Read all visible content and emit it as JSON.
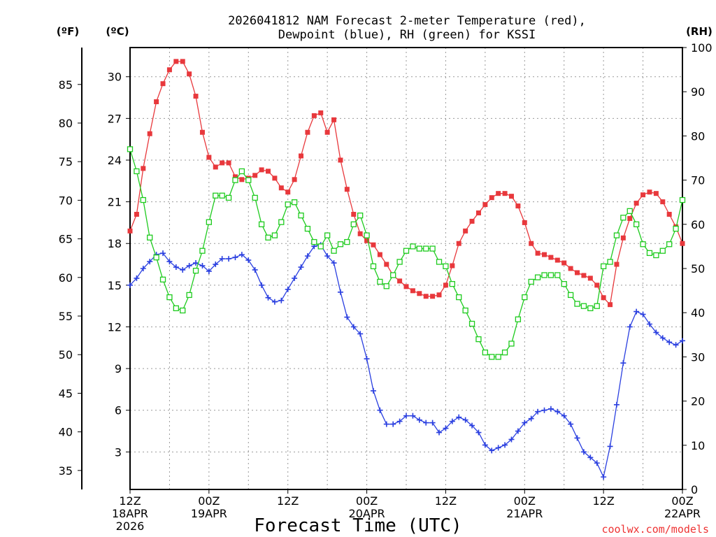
{
  "chart_data": {
    "type": "line",
    "title_line1": "2026041812 NAM Forecast 2-meter Temperature (red),",
    "title_line2": "Dewpoint (blue), RH (green) for KSSI",
    "xlabel": "Forecast Time (UTC)",
    "credit": "coolwx.com/models",
    "units": {
      "left_f": "(ºF)",
      "left_c": "(ºC)",
      "right_rh": "(RH)"
    },
    "xlim": [
      0,
      84
    ],
    "y_celsius_lim": [
      0.3,
      32.1
    ],
    "y_rh_lim": [
      0,
      100
    ],
    "celsius_ticks": [
      3,
      6,
      9,
      12,
      15,
      18,
      21,
      24,
      27,
      30
    ],
    "fahrenheit_ticks": [
      35,
      40,
      45,
      50,
      55,
      60,
      65,
      70,
      75,
      80,
      85
    ],
    "rh_ticks": [
      0,
      10,
      20,
      30,
      40,
      50,
      60,
      70,
      80,
      90,
      100
    ],
    "x_ticks": [
      {
        "h": 0,
        "l1": "12Z",
        "l2": "18APR",
        "l3": "2026"
      },
      {
        "h": 12,
        "l1": "00Z",
        "l2": "19APR",
        "l3": ""
      },
      {
        "h": 24,
        "l1": "12Z",
        "l2": "",
        "l3": ""
      },
      {
        "h": 36,
        "l1": "00Z",
        "l2": "20APR",
        "l3": ""
      },
      {
        "h": 48,
        "l1": "12Z",
        "l2": "",
        "l3": ""
      },
      {
        "h": 60,
        "l1": "00Z",
        "l2": "21APR",
        "l3": ""
      },
      {
        "h": 72,
        "l1": "12Z",
        "l2": "",
        "l3": ""
      },
      {
        "h": 84,
        "l1": "00Z",
        "l2": "22APR",
        "l3": ""
      }
    ],
    "series": [
      {
        "color": "#e8383c",
        "marker": "filled-square",
        "axis": "celsius",
        "points": [
          [
            0,
            18.9
          ],
          [
            1,
            20.1
          ],
          [
            2,
            23.4
          ],
          [
            3,
            25.9
          ],
          [
            4,
            28.2
          ],
          [
            5,
            29.5
          ],
          [
            6,
            30.5
          ],
          [
            7,
            31.1
          ],
          [
            8,
            31.1
          ],
          [
            9,
            30.2
          ],
          [
            10,
            28.6
          ],
          [
            11,
            26.0
          ],
          [
            12,
            24.2
          ],
          [
            13,
            23.5
          ],
          [
            14,
            23.8
          ],
          [
            15,
            23.8
          ],
          [
            16,
            22.8
          ],
          [
            17,
            22.6
          ],
          [
            18,
            22.7
          ],
          [
            19,
            22.9
          ],
          [
            20,
            23.3
          ],
          [
            21,
            23.2
          ],
          [
            22,
            22.7
          ],
          [
            23,
            22.0
          ],
          [
            24,
            21.7
          ],
          [
            25,
            22.6
          ],
          [
            26,
            24.3
          ],
          [
            27,
            26.0
          ],
          [
            28,
            27.2
          ],
          [
            29,
            27.4
          ],
          [
            30,
            26.0
          ],
          [
            31,
            26.9
          ],
          [
            32,
            24.0
          ],
          [
            33,
            21.9
          ],
          [
            34,
            20.1
          ],
          [
            35,
            18.7
          ],
          [
            36,
            18.2
          ],
          [
            37,
            17.9
          ],
          [
            38,
            17.2
          ],
          [
            39,
            16.5
          ],
          [
            40,
            15.7
          ],
          [
            41,
            15.3
          ],
          [
            42,
            14.9
          ],
          [
            43,
            14.6
          ],
          [
            44,
            14.4
          ],
          [
            45,
            14.2
          ],
          [
            46,
            14.2
          ],
          [
            47,
            14.3
          ],
          [
            48,
            15.0
          ],
          [
            49,
            16.4
          ],
          [
            50,
            18.0
          ],
          [
            51,
            18.9
          ],
          [
            52,
            19.6
          ],
          [
            53,
            20.2
          ],
          [
            54,
            20.8
          ],
          [
            55,
            21.3
          ],
          [
            56,
            21.6
          ],
          [
            57,
            21.6
          ],
          [
            58,
            21.4
          ],
          [
            59,
            20.7
          ],
          [
            60,
            19.5
          ],
          [
            61,
            18.0
          ],
          [
            62,
            17.3
          ],
          [
            63,
            17.2
          ],
          [
            64,
            17.0
          ],
          [
            65,
            16.8
          ],
          [
            66,
            16.6
          ],
          [
            67,
            16.2
          ],
          [
            68,
            15.9
          ],
          [
            69,
            15.7
          ],
          [
            70,
            15.5
          ],
          [
            71,
            15.0
          ],
          [
            72,
            14.1
          ],
          [
            73,
            13.6
          ],
          [
            74,
            16.5
          ],
          [
            75,
            18.4
          ],
          [
            76,
            19.8
          ],
          [
            77,
            20.9
          ],
          [
            78,
            21.5
          ],
          [
            79,
            21.7
          ],
          [
            80,
            21.6
          ],
          [
            81,
            21.0
          ],
          [
            82,
            20.1
          ],
          [
            83,
            19.2
          ],
          [
            84,
            18.0
          ]
        ]
      },
      {
        "color": "#2a3fe0",
        "marker": "plus",
        "axis": "celsius",
        "points": [
          [
            0,
            15.0
          ],
          [
            1,
            15.5
          ],
          [
            2,
            16.2
          ],
          [
            3,
            16.7
          ],
          [
            4,
            17.2
          ],
          [
            5,
            17.3
          ],
          [
            6,
            16.7
          ],
          [
            7,
            16.3
          ],
          [
            8,
            16.1
          ],
          [
            9,
            16.4
          ],
          [
            10,
            16.6
          ],
          [
            11,
            16.4
          ],
          [
            12,
            16.0
          ],
          [
            13,
            16.5
          ],
          [
            14,
            16.9
          ],
          [
            15,
            16.9
          ],
          [
            16,
            17.0
          ],
          [
            17,
            17.2
          ],
          [
            18,
            16.8
          ],
          [
            19,
            16.1
          ],
          [
            20,
            15.0
          ],
          [
            21,
            14.1
          ],
          [
            22,
            13.8
          ],
          [
            23,
            13.9
          ],
          [
            24,
            14.7
          ],
          [
            25,
            15.5
          ],
          [
            26,
            16.3
          ],
          [
            27,
            17.1
          ],
          [
            28,
            17.8
          ],
          [
            29,
            17.9
          ],
          [
            30,
            17.1
          ],
          [
            31,
            16.6
          ],
          [
            32,
            14.5
          ],
          [
            33,
            12.7
          ],
          [
            34,
            12.0
          ],
          [
            35,
            11.5
          ],
          [
            36,
            9.7
          ],
          [
            37,
            7.4
          ],
          [
            38,
            6.0
          ],
          [
            39,
            5.0
          ],
          [
            40,
            5.0
          ],
          [
            41,
            5.2
          ],
          [
            42,
            5.6
          ],
          [
            43,
            5.6
          ],
          [
            44,
            5.3
          ],
          [
            45,
            5.1
          ],
          [
            46,
            5.1
          ],
          [
            47,
            4.4
          ],
          [
            48,
            4.7
          ],
          [
            49,
            5.2
          ],
          [
            50,
            5.5
          ],
          [
            51,
            5.3
          ],
          [
            52,
            4.9
          ],
          [
            53,
            4.4
          ],
          [
            54,
            3.5
          ],
          [
            55,
            3.1
          ],
          [
            56,
            3.3
          ],
          [
            57,
            3.5
          ],
          [
            58,
            3.9
          ],
          [
            59,
            4.5
          ],
          [
            60,
            5.1
          ],
          [
            61,
            5.4
          ],
          [
            62,
            5.9
          ],
          [
            63,
            6.0
          ],
          [
            64,
            6.1
          ],
          [
            65,
            5.9
          ],
          [
            66,
            5.6
          ],
          [
            67,
            5.0
          ],
          [
            68,
            4.0
          ],
          [
            69,
            3.0
          ],
          [
            70,
            2.6
          ],
          [
            71,
            2.2
          ],
          [
            72,
            1.2
          ],
          [
            73,
            3.4
          ],
          [
            74,
            6.4
          ],
          [
            75,
            9.4
          ],
          [
            76,
            12.0
          ],
          [
            77,
            13.1
          ],
          [
            78,
            12.9
          ],
          [
            79,
            12.2
          ],
          [
            80,
            11.6
          ],
          [
            81,
            11.2
          ],
          [
            82,
            10.9
          ],
          [
            83,
            10.7
          ],
          [
            84,
            11.0
          ]
        ]
      },
      {
        "color": "#1ecb1e",
        "marker": "open-square",
        "axis": "rh",
        "points": [
          [
            0,
            77.0
          ],
          [
            1,
            72.0
          ],
          [
            2,
            65.5
          ],
          [
            3,
            57.0
          ],
          [
            4,
            52.5
          ],
          [
            5,
            47.5
          ],
          [
            6,
            43.5
          ],
          [
            7,
            41.0
          ],
          [
            8,
            40.5
          ],
          [
            9,
            44.0
          ],
          [
            10,
            49.5
          ],
          [
            11,
            54.0
          ],
          [
            12,
            60.5
          ],
          [
            13,
            66.5
          ],
          [
            14,
            66.5
          ],
          [
            15,
            66.0
          ],
          [
            16,
            70.0
          ],
          [
            17,
            72.0
          ],
          [
            18,
            70.0
          ],
          [
            19,
            66.0
          ],
          [
            20,
            60.0
          ],
          [
            21,
            57.0
          ],
          [
            22,
            57.5
          ],
          [
            23,
            60.5
          ],
          [
            24,
            64.5
          ],
          [
            25,
            65.0
          ],
          [
            26,
            62.0
          ],
          [
            27,
            59.0
          ],
          [
            28,
            56.0
          ],
          [
            29,
            55.0
          ],
          [
            30,
            57.5
          ],
          [
            31,
            54.0
          ],
          [
            32,
            55.5
          ],
          [
            33,
            56.0
          ],
          [
            34,
            60.0
          ],
          [
            35,
            62.0
          ],
          [
            36,
            57.5
          ],
          [
            37,
            50.5
          ],
          [
            38,
            47.0
          ],
          [
            39,
            46.0
          ],
          [
            40,
            48.5
          ],
          [
            41,
            51.5
          ],
          [
            42,
            54.0
          ],
          [
            43,
            55.0
          ],
          [
            44,
            54.5
          ],
          [
            45,
            54.5
          ],
          [
            46,
            54.5
          ],
          [
            47,
            51.5
          ],
          [
            48,
            50.5
          ],
          [
            49,
            46.5
          ],
          [
            50,
            43.5
          ],
          [
            51,
            40.5
          ],
          [
            52,
            37.5
          ],
          [
            53,
            34.0
          ],
          [
            54,
            31.0
          ],
          [
            55,
            30.0
          ],
          [
            56,
            30.0
          ],
          [
            57,
            31.0
          ],
          [
            58,
            33.0
          ],
          [
            59,
            38.5
          ],
          [
            60,
            43.5
          ],
          [
            61,
            47.0
          ],
          [
            62,
            48.0
          ],
          [
            63,
            48.5
          ],
          [
            64,
            48.5
          ],
          [
            65,
            48.5
          ],
          [
            66,
            46.5
          ],
          [
            67,
            44.0
          ],
          [
            68,
            42.0
          ],
          [
            69,
            41.5
          ],
          [
            70,
            41.0
          ],
          [
            71,
            41.5
          ],
          [
            72,
            50.5
          ],
          [
            73,
            51.5
          ],
          [
            74,
            57.5
          ],
          [
            75,
            61.5
          ],
          [
            76,
            63.0
          ],
          [
            77,
            60.0
          ],
          [
            78,
            55.5
          ],
          [
            79,
            53.5
          ],
          [
            80,
            53.0
          ],
          [
            81,
            54.0
          ],
          [
            82,
            55.5
          ],
          [
            83,
            59.0
          ],
          [
            84,
            65.5
          ]
        ]
      }
    ]
  }
}
